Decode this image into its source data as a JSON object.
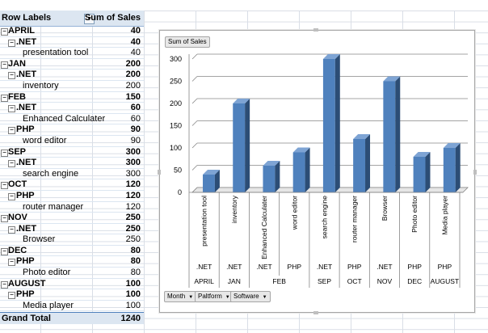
{
  "pivot": {
    "header_row_labels": "Row Labels",
    "header_sum": "Sum of Sales",
    "rows": [
      {
        "level": 0,
        "label": "APRIL",
        "value": "40"
      },
      {
        "level": 1,
        "label": ".NET",
        "value": "40"
      },
      {
        "level": 2,
        "label": "presentation tool",
        "value": "40"
      },
      {
        "level": 0,
        "label": "JAN",
        "value": "200"
      },
      {
        "level": 1,
        "label": ".NET",
        "value": "200"
      },
      {
        "level": 2,
        "label": "inventory",
        "value": "200"
      },
      {
        "level": 0,
        "label": "FEB",
        "value": "150"
      },
      {
        "level": 1,
        "label": ".NET",
        "value": "60"
      },
      {
        "level": 2,
        "label": "Enhanced Calculater",
        "value": "60"
      },
      {
        "level": 1,
        "label": "PHP",
        "value": "90"
      },
      {
        "level": 2,
        "label": "word editor",
        "value": "90"
      },
      {
        "level": 0,
        "label": "SEP",
        "value": "300"
      },
      {
        "level": 1,
        "label": ".NET",
        "value": "300"
      },
      {
        "level": 2,
        "label": "search engine",
        "value": "300"
      },
      {
        "level": 0,
        "label": "OCT",
        "value": "120"
      },
      {
        "level": 1,
        "label": "PHP",
        "value": "120"
      },
      {
        "level": 2,
        "label": "router manager",
        "value": "120"
      },
      {
        "level": 0,
        "label": "NOV",
        "value": "250"
      },
      {
        "level": 1,
        "label": ".NET",
        "value": "250"
      },
      {
        "level": 2,
        "label": "Browser",
        "value": "250"
      },
      {
        "level": 0,
        "label": "DEC",
        "value": "80"
      },
      {
        "level": 1,
        "label": "PHP",
        "value": "80"
      },
      {
        "level": 2,
        "label": "Photo editor",
        "value": "80"
      },
      {
        "level": 0,
        "label": "AUGUST",
        "value": "100"
      },
      {
        "level": 1,
        "label": "PHP",
        "value": "100"
      },
      {
        "level": 2,
        "label": "Media player",
        "value": "100"
      }
    ],
    "grand_total_label": "Grand Total",
    "grand_total_value": "1240",
    "expand_symbol": "⊟"
  },
  "chart_buttons": {
    "values_field": "Sum of Sales",
    "axis_fields": [
      "Month",
      "Paltform",
      "Software"
    ]
  },
  "chart_data": {
    "type": "bar",
    "categories": [
      "presentation tool",
      "inventory",
      "Enhanced Calculater",
      "word editor",
      "search engine",
      "router manager",
      "Browser",
      "Photo editor",
      "Media player"
    ],
    "platforms": [
      ".NET",
      ".NET",
      ".NET",
      "PHP",
      ".NET",
      "PHP",
      ".NET",
      "PHP",
      "PHP"
    ],
    "months": [
      {
        "label": "APRIL",
        "span": 1
      },
      {
        "label": "JAN",
        "span": 1
      },
      {
        "label": "FEB",
        "span": 2
      },
      {
        "label": "SEP",
        "span": 1
      },
      {
        "label": "OCT",
        "span": 1
      },
      {
        "label": "NOV",
        "span": 1
      },
      {
        "label": "DEC",
        "span": 1
      },
      {
        "label": "AUGUST",
        "span": 1
      }
    ],
    "series": [
      {
        "name": "Sum of Sales",
        "values": [
          40,
          200,
          60,
          90,
          300,
          120,
          250,
          80,
          100
        ]
      }
    ],
    "y_ticks": [
      "0",
      "50",
      "100",
      "150",
      "200",
      "250",
      "300"
    ],
    "ylim": [
      0,
      300
    ],
    "bar_color": "#4f81bd",
    "grid": true
  }
}
